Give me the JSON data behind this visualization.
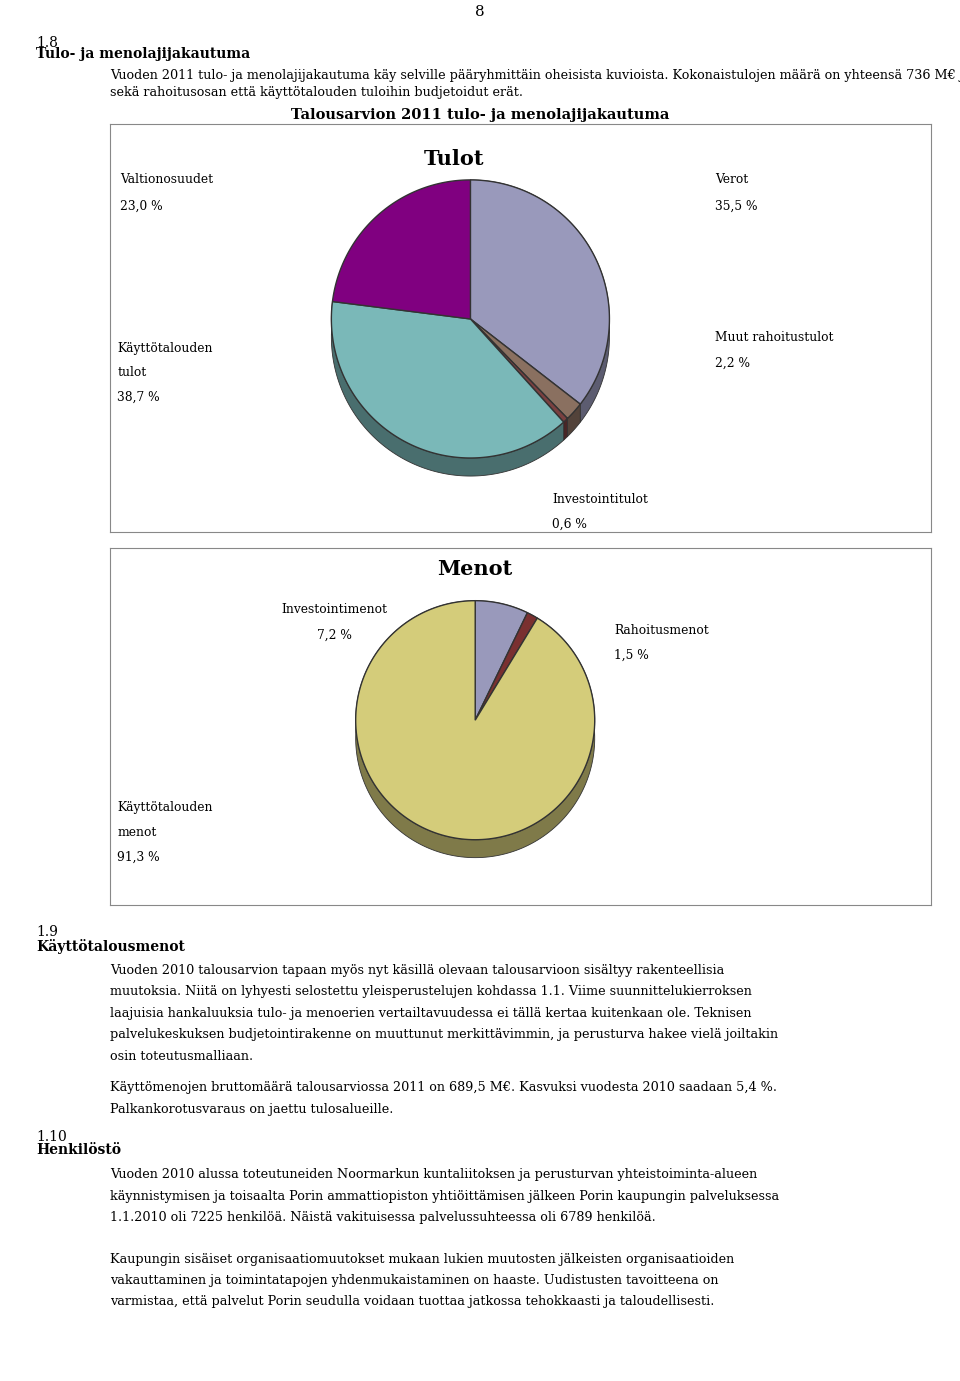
{
  "page_number": "8",
  "section_number": "1.8",
  "section_title": "Tulo- ja menolajijakautuma",
  "chart_title": "Talousarvion 2011 tulo- ja menolajijakautuma",
  "tulot_title": "Tulot",
  "menot_title": "Menot",
  "tulot_slices": [
    35.5,
    2.2,
    0.6,
    38.7,
    23.0
  ],
  "tulot_colors": [
    "#9999bb",
    "#8a7060",
    "#7a4040",
    "#7ab8b8",
    "#800080"
  ],
  "menot_slices": [
    7.2,
    1.5,
    91.3
  ],
  "menot_colors": [
    "#9999bb",
    "#7a3030",
    "#d4cc7a"
  ],
  "section2_number": "1.9",
  "section2_title": "Käyttötalousmenot",
  "section3_number": "1.10",
  "section3_title": "Henkilöstö"
}
